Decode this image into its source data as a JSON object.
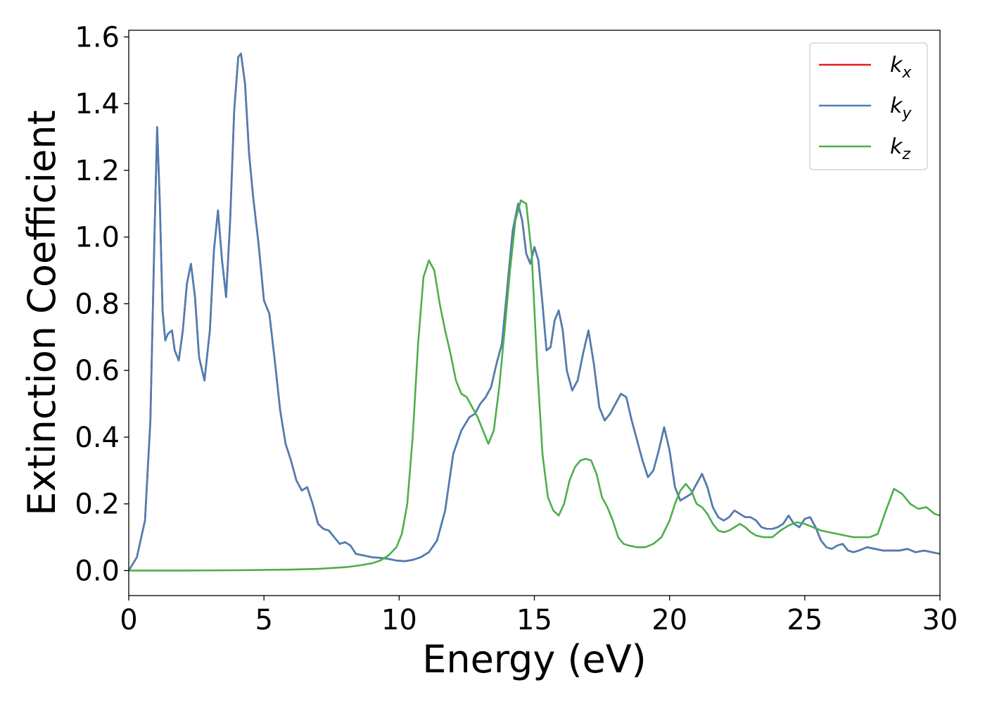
{
  "chart_data": {
    "type": "line",
    "title": "",
    "xlabel": "Energy (eV)",
    "ylabel": "Extinction Coefficient",
    "xlim": [
      0,
      30
    ],
    "ylim": [
      -0.075,
      1.62
    ],
    "xticks": [
      0,
      5,
      10,
      15,
      20,
      25,
      30
    ],
    "xtick_labels": [
      "0",
      "5",
      "10",
      "15",
      "20",
      "25",
      "30"
    ],
    "yticks": [
      0.0,
      0.2,
      0.4,
      0.6,
      0.8,
      1.0,
      1.2,
      1.4,
      1.6
    ],
    "ytick_labels": [
      "0.0",
      "0.2",
      "0.4",
      "0.6",
      "0.8",
      "1.0",
      "1.2",
      "1.4",
      "1.6"
    ],
    "grid": false,
    "legend_position": "top-right",
    "series": [
      {
        "name": "k",
        "subscript": "x",
        "color": "#e41a1c",
        "x": [
          0,
          0.3,
          0.6,
          0.8,
          0.95,
          1.05,
          1.15,
          1.25,
          1.35,
          1.45,
          1.6,
          1.7,
          1.85,
          2.0,
          2.15,
          2.3,
          2.45,
          2.6,
          2.8,
          3.0,
          3.15,
          3.3,
          3.45,
          3.6,
          3.75,
          3.9,
          4.05,
          4.15,
          4.3,
          4.45,
          4.6,
          4.8,
          5.0,
          5.2,
          5.4,
          5.6,
          5.8,
          6.0,
          6.2,
          6.4,
          6.6,
          6.8,
          7.0,
          7.2,
          7.4,
          7.6,
          7.8,
          8.0,
          8.2,
          8.4,
          8.7,
          9.0,
          9.3,
          9.6,
          9.9,
          10.2,
          10.5,
          10.8,
          11.1,
          11.4,
          11.7,
          12.0,
          12.3,
          12.6,
          12.8,
          13.0,
          13.2,
          13.4,
          13.6,
          13.8,
          14.0,
          14.2,
          14.4,
          14.55,
          14.7,
          14.85,
          15.0,
          15.15,
          15.3,
          15.45,
          15.6,
          15.75,
          15.9,
          16.05,
          16.2,
          16.4,
          16.6,
          16.8,
          17.0,
          17.2,
          17.4,
          17.6,
          17.8,
          18.0,
          18.2,
          18.4,
          18.6,
          18.8,
          19.0,
          19.2,
          19.4,
          19.6,
          19.8,
          20.0,
          20.2,
          20.4,
          20.6,
          20.8,
          21.0,
          21.2,
          21.4,
          21.6,
          21.8,
          22.0,
          22.2,
          22.4,
          22.6,
          22.8,
          23.0,
          23.2,
          23.4,
          23.6,
          23.8,
          24.0,
          24.2,
          24.4,
          24.6,
          24.8,
          25.0,
          25.2,
          25.4,
          25.6,
          25.8,
          26.0,
          26.2,
          26.4,
          26.6,
          26.8,
          27.0,
          27.3,
          27.6,
          27.9,
          28.2,
          28.5,
          28.8,
          29.1,
          29.4,
          29.7,
          30.0
        ],
        "y": [
          0.0,
          0.04,
          0.15,
          0.45,
          1.0,
          1.33,
          1.1,
          0.78,
          0.69,
          0.71,
          0.72,
          0.66,
          0.63,
          0.72,
          0.86,
          0.92,
          0.82,
          0.64,
          0.57,
          0.72,
          0.96,
          1.08,
          0.93,
          0.82,
          1.05,
          1.38,
          1.54,
          1.55,
          1.46,
          1.25,
          1.12,
          0.98,
          0.81,
          0.77,
          0.63,
          0.48,
          0.38,
          0.33,
          0.27,
          0.24,
          0.25,
          0.2,
          0.14,
          0.125,
          0.12,
          0.1,
          0.08,
          0.085,
          0.075,
          0.05,
          0.045,
          0.04,
          0.038,
          0.035,
          0.03,
          0.028,
          0.032,
          0.04,
          0.055,
          0.09,
          0.18,
          0.35,
          0.42,
          0.46,
          0.47,
          0.5,
          0.52,
          0.55,
          0.62,
          0.68,
          0.85,
          1.02,
          1.1,
          1.05,
          0.95,
          0.92,
          0.97,
          0.93,
          0.8,
          0.66,
          0.67,
          0.75,
          0.78,
          0.72,
          0.6,
          0.54,
          0.57,
          0.65,
          0.72,
          0.62,
          0.49,
          0.45,
          0.47,
          0.5,
          0.53,
          0.52,
          0.45,
          0.39,
          0.33,
          0.28,
          0.3,
          0.36,
          0.43,
          0.36,
          0.25,
          0.21,
          0.22,
          0.23,
          0.26,
          0.29,
          0.25,
          0.19,
          0.16,
          0.15,
          0.16,
          0.18,
          0.17,
          0.16,
          0.16,
          0.15,
          0.13,
          0.125,
          0.125,
          0.13,
          0.14,
          0.165,
          0.14,
          0.13,
          0.155,
          0.16,
          0.13,
          0.09,
          0.07,
          0.065,
          0.075,
          0.08,
          0.06,
          0.055,
          0.06,
          0.07,
          0.065,
          0.06,
          0.06,
          0.06,
          0.065,
          0.055,
          0.06,
          0.055,
          0.05
        ]
      },
      {
        "name": "k",
        "subscript": "y",
        "color": "#4a7fb5",
        "x": [
          0,
          0.3,
          0.6,
          0.8,
          0.95,
          1.05,
          1.15,
          1.25,
          1.35,
          1.45,
          1.6,
          1.7,
          1.85,
          2.0,
          2.15,
          2.3,
          2.45,
          2.6,
          2.8,
          3.0,
          3.15,
          3.3,
          3.45,
          3.6,
          3.75,
          3.9,
          4.05,
          4.15,
          4.3,
          4.45,
          4.6,
          4.8,
          5.0,
          5.2,
          5.4,
          5.6,
          5.8,
          6.0,
          6.2,
          6.4,
          6.6,
          6.8,
          7.0,
          7.2,
          7.4,
          7.6,
          7.8,
          8.0,
          8.2,
          8.4,
          8.7,
          9.0,
          9.3,
          9.6,
          9.9,
          10.2,
          10.5,
          10.8,
          11.1,
          11.4,
          11.7,
          12.0,
          12.3,
          12.6,
          12.8,
          13.0,
          13.2,
          13.4,
          13.6,
          13.8,
          14.0,
          14.2,
          14.4,
          14.55,
          14.7,
          14.85,
          15.0,
          15.15,
          15.3,
          15.45,
          15.6,
          15.75,
          15.9,
          16.05,
          16.2,
          16.4,
          16.6,
          16.8,
          17.0,
          17.2,
          17.4,
          17.6,
          17.8,
          18.0,
          18.2,
          18.4,
          18.6,
          18.8,
          19.0,
          19.2,
          19.4,
          19.6,
          19.8,
          20.0,
          20.2,
          20.4,
          20.6,
          20.8,
          21.0,
          21.2,
          21.4,
          21.6,
          21.8,
          22.0,
          22.2,
          22.4,
          22.6,
          22.8,
          23.0,
          23.2,
          23.4,
          23.6,
          23.8,
          24.0,
          24.2,
          24.4,
          24.6,
          24.8,
          25.0,
          25.2,
          25.4,
          25.6,
          25.8,
          26.0,
          26.2,
          26.4,
          26.6,
          26.8,
          27.0,
          27.3,
          27.6,
          27.9,
          28.2,
          28.5,
          28.8,
          29.1,
          29.4,
          29.7,
          30.0
        ],
        "y": [
          0.0,
          0.04,
          0.15,
          0.45,
          1.0,
          1.33,
          1.1,
          0.78,
          0.69,
          0.71,
          0.72,
          0.66,
          0.63,
          0.72,
          0.86,
          0.92,
          0.82,
          0.64,
          0.57,
          0.72,
          0.96,
          1.08,
          0.93,
          0.82,
          1.05,
          1.38,
          1.54,
          1.55,
          1.46,
          1.25,
          1.12,
          0.98,
          0.81,
          0.77,
          0.63,
          0.48,
          0.38,
          0.33,
          0.27,
          0.24,
          0.25,
          0.2,
          0.14,
          0.125,
          0.12,
          0.1,
          0.08,
          0.085,
          0.075,
          0.05,
          0.045,
          0.04,
          0.038,
          0.035,
          0.03,
          0.028,
          0.032,
          0.04,
          0.055,
          0.09,
          0.18,
          0.35,
          0.42,
          0.46,
          0.47,
          0.5,
          0.52,
          0.55,
          0.62,
          0.68,
          0.85,
          1.02,
          1.1,
          1.05,
          0.95,
          0.92,
          0.97,
          0.93,
          0.8,
          0.66,
          0.67,
          0.75,
          0.78,
          0.72,
          0.6,
          0.54,
          0.57,
          0.65,
          0.72,
          0.62,
          0.49,
          0.45,
          0.47,
          0.5,
          0.53,
          0.52,
          0.45,
          0.39,
          0.33,
          0.28,
          0.3,
          0.36,
          0.43,
          0.36,
          0.25,
          0.21,
          0.22,
          0.23,
          0.26,
          0.29,
          0.25,
          0.19,
          0.16,
          0.15,
          0.16,
          0.18,
          0.17,
          0.16,
          0.16,
          0.15,
          0.13,
          0.125,
          0.125,
          0.13,
          0.14,
          0.165,
          0.14,
          0.13,
          0.155,
          0.16,
          0.13,
          0.09,
          0.07,
          0.065,
          0.075,
          0.08,
          0.06,
          0.055,
          0.06,
          0.07,
          0.065,
          0.06,
          0.06,
          0.06,
          0.065,
          0.055,
          0.06,
          0.055,
          0.05
        ]
      },
      {
        "name": "k",
        "subscript": "z",
        "color": "#4daf4a",
        "x": [
          0,
          2,
          4,
          6,
          7,
          8,
          8.5,
          9.0,
          9.3,
          9.6,
          9.9,
          10.1,
          10.3,
          10.5,
          10.7,
          10.9,
          11.1,
          11.3,
          11.5,
          11.7,
          11.9,
          12.1,
          12.3,
          12.5,
          12.7,
          12.9,
          13.1,
          13.3,
          13.5,
          13.7,
          13.9,
          14.1,
          14.3,
          14.5,
          14.7,
          14.9,
          15.1,
          15.3,
          15.5,
          15.7,
          15.9,
          16.1,
          16.3,
          16.5,
          16.7,
          16.9,
          17.1,
          17.3,
          17.5,
          17.7,
          17.9,
          18.1,
          18.3,
          18.5,
          18.8,
          19.1,
          19.4,
          19.7,
          20.0,
          20.2,
          20.4,
          20.6,
          20.8,
          21.0,
          21.2,
          21.4,
          21.6,
          21.8,
          22.0,
          22.2,
          22.4,
          22.6,
          22.8,
          23.0,
          23.2,
          23.5,
          23.8,
          24.1,
          24.4,
          24.7,
          25.0,
          25.3,
          25.6,
          25.9,
          26.2,
          26.5,
          26.8,
          27.1,
          27.4,
          27.7,
          28.0,
          28.3,
          28.6,
          28.9,
          29.2,
          29.5,
          29.8,
          30.0
        ],
        "y": [
          0.0,
          0.0,
          0.001,
          0.003,
          0.005,
          0.01,
          0.015,
          0.022,
          0.03,
          0.045,
          0.07,
          0.11,
          0.2,
          0.4,
          0.68,
          0.88,
          0.93,
          0.9,
          0.8,
          0.72,
          0.65,
          0.57,
          0.53,
          0.52,
          0.49,
          0.46,
          0.42,
          0.38,
          0.42,
          0.55,
          0.72,
          0.9,
          1.05,
          1.11,
          1.1,
          0.95,
          0.62,
          0.35,
          0.22,
          0.18,
          0.165,
          0.2,
          0.27,
          0.31,
          0.33,
          0.335,
          0.33,
          0.29,
          0.22,
          0.19,
          0.15,
          0.1,
          0.08,
          0.075,
          0.07,
          0.07,
          0.08,
          0.1,
          0.15,
          0.2,
          0.24,
          0.26,
          0.24,
          0.2,
          0.19,
          0.17,
          0.14,
          0.12,
          0.115,
          0.12,
          0.13,
          0.14,
          0.13,
          0.115,
          0.105,
          0.1,
          0.1,
          0.12,
          0.135,
          0.145,
          0.14,
          0.13,
          0.12,
          0.115,
          0.11,
          0.105,
          0.1,
          0.1,
          0.1,
          0.11,
          0.18,
          0.245,
          0.23,
          0.2,
          0.185,
          0.19,
          0.17,
          0.165
        ]
      }
    ]
  }
}
